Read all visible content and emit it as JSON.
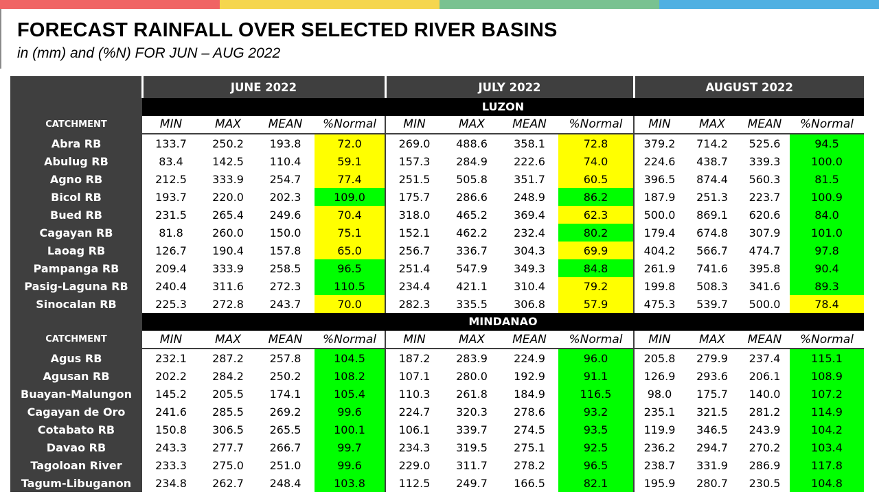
{
  "topbar_colors": [
    "#f06464",
    "#f5d64e",
    "#79c291",
    "#4fb0e2"
  ],
  "title": "FORECAST RAINFALL OVER SELECTED RIVER BASINS",
  "subtitle": "in (mm) and (%N) FOR JUN – AUG 2022",
  "months": [
    "JUNE 2022",
    "JULY 2022",
    "AUGUST 2022"
  ],
  "col_labels": [
    "MIN",
    "MAX",
    "MEAN",
    "%Normal"
  ],
  "catchment_label": "CATCHMENT",
  "status_colors": {
    "yellow": "#ffff00",
    "green": "#00ff00"
  },
  "sections": [
    {
      "region": "LUZON",
      "rows": [
        {
          "name": "Abra RB",
          "vals": [
            "133.7",
            "250.2",
            "193.8",
            "72.0",
            "269.0",
            "488.6",
            "358.1",
            "72.8",
            "379.2",
            "714.2",
            "525.6",
            "94.5"
          ],
          "status": [
            "yellow",
            "yellow",
            "green"
          ]
        },
        {
          "name": "Abulug RB",
          "vals": [
            "83.4",
            "142.5",
            "110.4",
            "59.1",
            "157.3",
            "284.9",
            "222.6",
            "74.0",
            "224.6",
            "438.7",
            "339.3",
            "100.0"
          ],
          "status": [
            "yellow",
            "yellow",
            "green"
          ]
        },
        {
          "name": "Agno RB",
          "vals": [
            "212.5",
            "333.9",
            "254.7",
            "77.4",
            "251.5",
            "505.8",
            "351.7",
            "60.5",
            "396.5",
            "874.4",
            "560.3",
            "81.5"
          ],
          "status": [
            "yellow",
            "yellow",
            "green"
          ]
        },
        {
          "name": "Bicol RB",
          "vals": [
            "193.7",
            "220.0",
            "202.3",
            "109.0",
            "175.7",
            "286.6",
            "248.9",
            "86.2",
            "187.9",
            "251.3",
            "223.7",
            "100.9"
          ],
          "status": [
            "green",
            "green",
            "green"
          ]
        },
        {
          "name": "Bued RB",
          "vals": [
            "231.5",
            "265.4",
            "249.6",
            "70.4",
            "318.0",
            "465.2",
            "369.4",
            "62.3",
            "500.0",
            "869.1",
            "620.6",
            "84.0"
          ],
          "status": [
            "yellow",
            "yellow",
            "green"
          ]
        },
        {
          "name": "Cagayan RB",
          "vals": [
            "81.8",
            "260.0",
            "150.0",
            "75.1",
            "152.1",
            "462.2",
            "232.4",
            "80.2",
            "179.4",
            "674.8",
            "307.9",
            "101.0"
          ],
          "status": [
            "yellow",
            "green",
            "green"
          ]
        },
        {
          "name": "Laoag RB",
          "vals": [
            "126.7",
            "190.4",
            "157.8",
            "65.0",
            "256.7",
            "336.7",
            "304.3",
            "69.9",
            "404.2",
            "566.7",
            "474.7",
            "97.8"
          ],
          "status": [
            "yellow",
            "yellow",
            "green"
          ]
        },
        {
          "name": "Pampanga RB",
          "vals": [
            "209.4",
            "333.9",
            "258.5",
            "96.5",
            "251.4",
            "547.9",
            "349.3",
            "84.8",
            "261.9",
            "741.6",
            "395.8",
            "90.4"
          ],
          "status": [
            "green",
            "green",
            "green"
          ]
        },
        {
          "name": "Pasig-Laguna RB",
          "vals": [
            "240.4",
            "311.6",
            "272.3",
            "110.5",
            "234.4",
            "421.1",
            "310.4",
            "79.2",
            "199.8",
            "508.3",
            "341.6",
            "89.3"
          ],
          "status": [
            "green",
            "yellow",
            "green"
          ]
        },
        {
          "name": "Sinocalan RB",
          "vals": [
            "225.3",
            "272.8",
            "243.7",
            "70.0",
            "282.3",
            "335.5",
            "306.8",
            "57.9",
            "475.3",
            "539.7",
            "500.0",
            "78.4"
          ],
          "status": [
            "yellow",
            "yellow",
            "yellow"
          ]
        }
      ]
    },
    {
      "region": "MINDANAO",
      "rows": [
        {
          "name": "Agus RB",
          "vals": [
            "232.1",
            "287.2",
            "257.8",
            "104.5",
            "187.2",
            "283.9",
            "224.9",
            "96.0",
            "205.8",
            "279.9",
            "237.4",
            "115.1"
          ],
          "status": [
            "green",
            "green",
            "green"
          ]
        },
        {
          "name": "Agusan RB",
          "vals": [
            "202.2",
            "284.2",
            "250.2",
            "108.2",
            "107.1",
            "280.0",
            "192.9",
            "91.1",
            "126.9",
            "293.6",
            "206.1",
            "108.9"
          ],
          "status": [
            "green",
            "green",
            "green"
          ]
        },
        {
          "name": "Buayan-Malungon",
          "vals": [
            "145.2",
            "205.5",
            "174.1",
            "105.4",
            "110.3",
            "261.8",
            "184.9",
            "116.5",
            "98.0",
            "175.7",
            "140.0",
            "107.2"
          ],
          "status": [
            "green",
            "green",
            "green"
          ]
        },
        {
          "name": "Cagayan de Oro",
          "vals": [
            "241.6",
            "285.5",
            "269.2",
            "99.6",
            "224.7",
            "320.3",
            "278.6",
            "93.2",
            "235.1",
            "321.5",
            "281.2",
            "114.9"
          ],
          "status": [
            "green",
            "green",
            "green"
          ]
        },
        {
          "name": "Cotabato RB",
          "vals": [
            "150.8",
            "306.5",
            "265.5",
            "100.1",
            "106.1",
            "339.7",
            "274.5",
            "93.5",
            "119.9",
            "346.5",
            "243.9",
            "104.2"
          ],
          "status": [
            "green",
            "green",
            "green"
          ]
        },
        {
          "name": "Davao RB",
          "vals": [
            "243.3",
            "277.7",
            "266.7",
            "99.7",
            "234.3",
            "319.5",
            "275.1",
            "92.5",
            "236.2",
            "294.7",
            "270.2",
            "103.4"
          ],
          "status": [
            "green",
            "green",
            "green"
          ]
        },
        {
          "name": "Tagoloan River",
          "vals": [
            "233.3",
            "275.0",
            "251.0",
            "99.6",
            "229.0",
            "311.7",
            "278.2",
            "96.5",
            "238.7",
            "331.9",
            "286.9",
            "117.8"
          ],
          "status": [
            "green",
            "green",
            "green"
          ]
        },
        {
          "name": "Tagum-Libuganon",
          "vals": [
            "234.8",
            "262.7",
            "248.4",
            "103.8",
            "112.5",
            "249.7",
            "166.5",
            "82.1",
            "195.9",
            "280.7",
            "230.5",
            "104.8"
          ],
          "status": [
            "green",
            "green",
            "green"
          ]
        }
      ]
    }
  ]
}
